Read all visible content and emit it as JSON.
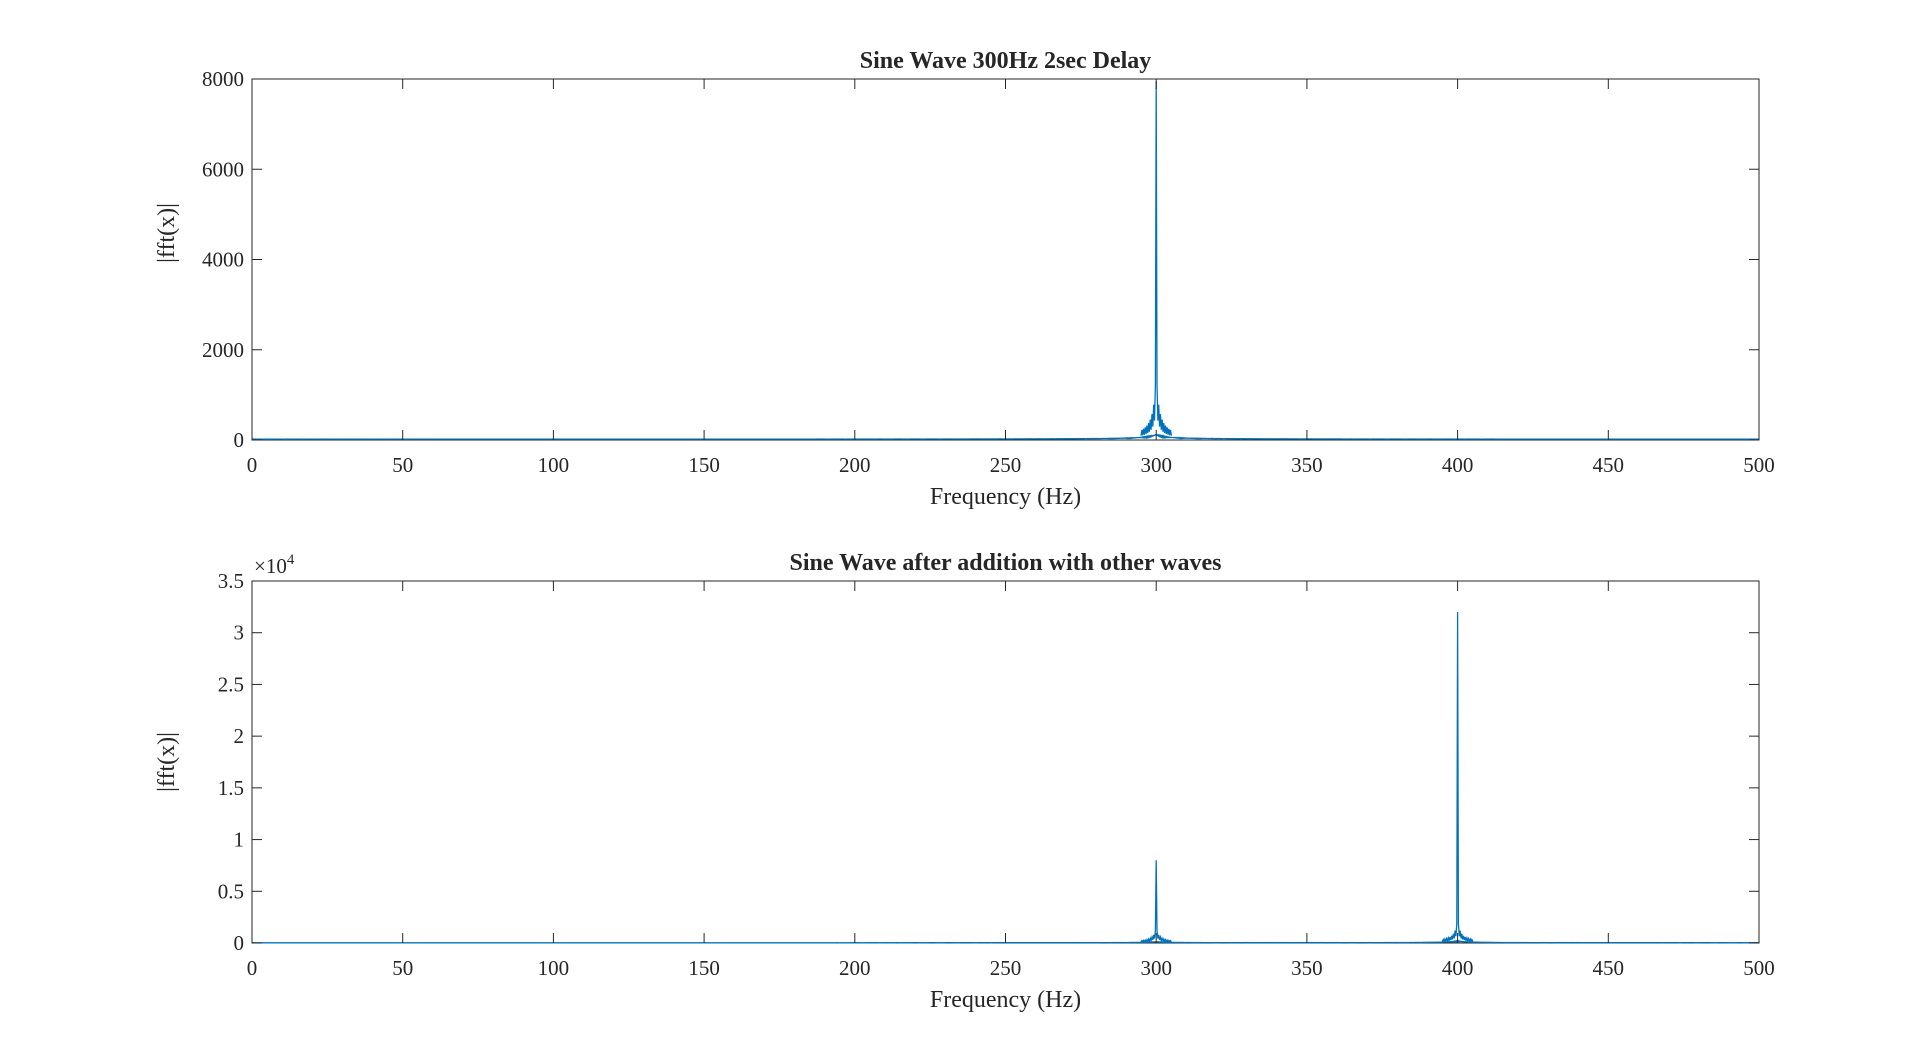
{
  "figure": {
    "background": "#ffffff",
    "axis_color": "#262626",
    "series_color": "#0072bd"
  },
  "chart_data": [
    {
      "type": "line",
      "title": "Sine Wave 300Hz 2sec Delay",
      "xlabel": "Frequency (Hz)",
      "ylabel": "|fft(x)|",
      "xlim": [
        0,
        500
      ],
      "ylim": [
        0,
        8000
      ],
      "xticks": [
        0,
        50,
        100,
        150,
        200,
        250,
        300,
        350,
        400,
        450,
        500
      ],
      "xtick_labels": [
        "0",
        "50",
        "100",
        "150",
        "200",
        "250",
        "300",
        "350",
        "400",
        "450",
        "500"
      ],
      "yticks": [
        0,
        2000,
        4000,
        6000,
        8000
      ],
      "ytick_labels": [
        "0",
        "2000",
        "4000",
        "6000",
        "8000"
      ],
      "y_exponent_label": "",
      "grid": false,
      "legend": "none",
      "series": [
        {
          "peaks": [
            {
              "frequency": 300,
              "magnitude": 7950,
              "shoulder": 1700,
              "base": 120
            }
          ]
        }
      ]
    },
    {
      "type": "line",
      "title": "Sine Wave after addition with other waves",
      "xlabel": "Frequency (Hz)",
      "ylabel": "|fft(x)|",
      "xlim": [
        0,
        500
      ],
      "ylim": [
        0,
        3.5
      ],
      "y_multiplier": 10000,
      "xticks": [
        0,
        50,
        100,
        150,
        200,
        250,
        300,
        350,
        400,
        450,
        500
      ],
      "xtick_labels": [
        "0",
        "50",
        "100",
        "150",
        "200",
        "250",
        "300",
        "350",
        "400",
        "450",
        "500"
      ],
      "yticks": [
        0,
        0.5,
        1,
        1.5,
        2,
        2.5,
        3,
        3.5
      ],
      "ytick_labels": [
        "0",
        "0.5",
        "1",
        "1.5",
        "2",
        "2.5",
        "3",
        "3.5"
      ],
      "y_exponent_label": "×10",
      "y_exponent_power": "4",
      "grid": false,
      "legend": "none",
      "series": [
        {
          "peaks": [
            {
              "frequency": 300,
              "magnitude": 0.8,
              "shoulder": 0.17,
              "base": 0.012
            },
            {
              "frequency": 400,
              "magnitude": 3.2,
              "shoulder": 0.26,
              "base": 0.02
            }
          ]
        }
      ]
    }
  ]
}
